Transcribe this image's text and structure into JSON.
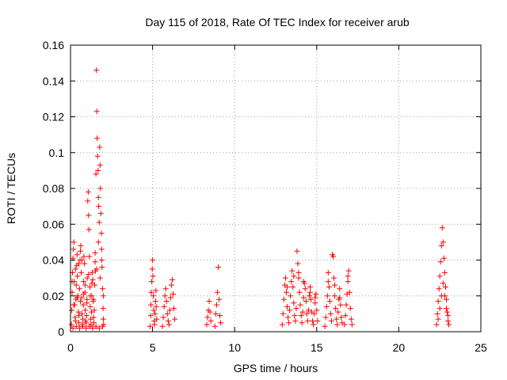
{
  "chart_data": {
    "type": "scatter",
    "title": "Day 115 of 2018, Rate Of TEC Index for receiver arub",
    "xlabel": "GPS time / hours",
    "ylabel": "ROTI / TECUs",
    "xlim": [
      0,
      25
    ],
    "ylim": [
      0,
      0.16
    ],
    "x_ticks": [
      0,
      5,
      10,
      15,
      20,
      25
    ],
    "y_ticks": [
      0,
      0.02,
      0.04,
      0.06,
      0.08,
      0.1,
      0.12,
      0.14,
      0.16
    ],
    "x_tick_labels": [
      "0",
      "5",
      "10",
      "15",
      "20",
      "25"
    ],
    "y_tick_labels": [
      "0",
      "0.02",
      "0.04",
      "0.06",
      "0.08",
      "0.1",
      "0.12",
      "0.14",
      "0.16"
    ],
    "grid": true,
    "marker": "plus",
    "color": "#ff0000",
    "points": [
      [
        0.05,
        0.004
      ],
      [
        0.08,
        0.012
      ],
      [
        0.1,
        0.022
      ],
      [
        0.12,
        0.033
      ],
      [
        0.15,
        0.041
      ],
      [
        0.18,
        0.046
      ],
      [
        0.2,
        0.05
      ],
      [
        0.22,
        0.028
      ],
      [
        0.25,
        0.015
      ],
      [
        0.28,
        0.008
      ],
      [
        0.3,
        0.006
      ],
      [
        0.33,
        0.018
      ],
      [
        0.35,
        0.026
      ],
      [
        0.38,
        0.037
      ],
      [
        0.4,
        0.043
      ],
      [
        0.42,
        0.031
      ],
      [
        0.45,
        0.02
      ],
      [
        0.48,
        0.011
      ],
      [
        0.5,
        0.005
      ],
      [
        0.52,
        0.009
      ],
      [
        0.55,
        0.024
      ],
      [
        0.58,
        0.04
      ],
      [
        0.6,
        0.045
      ],
      [
        0.62,
        0.048
      ],
      [
        0.65,
        0.033
      ],
      [
        0.68,
        0.019
      ],
      [
        0.7,
        0.01
      ],
      [
        0.72,
        0.004
      ],
      [
        0.75,
        0.007
      ],
      [
        0.78,
        0.015
      ],
      [
        0.8,
        0.028
      ],
      [
        0.82,
        0.042
      ],
      [
        0.85,
        0.038
      ],
      [
        0.88,
        0.022
      ],
      [
        0.9,
        0.012
      ],
      [
        0.92,
        0.006
      ],
      [
        0.95,
        0.005
      ],
      [
        0.98,
        0.009
      ],
      [
        1.0,
        0.018
      ],
      [
        1.02,
        0.03
      ],
      [
        1.05,
        0.073
      ],
      [
        1.08,
        0.078
      ],
      [
        1.1,
        0.065
      ],
      [
        1.12,
        0.057
      ],
      [
        1.15,
        0.042
      ],
      [
        1.18,
        0.025
      ],
      [
        1.2,
        0.014
      ],
      [
        1.22,
        0.007
      ],
      [
        1.25,
        0.004
      ],
      [
        1.28,
        0.011
      ],
      [
        1.3,
        0.02
      ],
      [
        1.32,
        0.033
      ],
      [
        1.35,
        0.029
      ],
      [
        1.38,
        0.017
      ],
      [
        1.4,
        0.008
      ],
      [
        1.42,
        0.005
      ],
      [
        1.45,
        0.012
      ],
      [
        1.48,
        0.026
      ],
      [
        1.5,
        0.039
      ],
      [
        1.52,
        0.034
      ],
      [
        1.55,
        0.088
      ],
      [
        1.58,
        0.146
      ],
      [
        1.6,
        0.123
      ],
      [
        1.62,
        0.108
      ],
      [
        1.65,
        0.098
      ],
      [
        1.68,
        0.09
      ],
      [
        1.7,
        0.075
      ],
      [
        1.72,
        0.07
      ],
      [
        1.75,
        0.061
      ],
      [
        1.78,
        0.103
      ],
      [
        1.8,
        0.093
      ],
      [
        1.82,
        0.08
      ],
      [
        1.85,
        0.066
      ],
      [
        1.88,
        0.055
      ],
      [
        1.9,
        0.046
      ],
      [
        1.92,
        0.036
      ],
      [
        1.95,
        0.024
      ],
      [
        1.98,
        0.013
      ],
      [
        2.0,
        0.007
      ],
      [
        2.02,
        0.004
      ],
      [
        0.15,
        0.002
      ],
      [
        0.35,
        0.003
      ],
      [
        0.55,
        0.002
      ],
      [
        0.75,
        0.003
      ],
      [
        0.95,
        0.002
      ],
      [
        1.15,
        0.003
      ],
      [
        1.35,
        0.002
      ],
      [
        1.55,
        0.003
      ],
      [
        1.75,
        0.002
      ],
      [
        1.95,
        0.003
      ],
      [
        4.85,
        0.003
      ],
      [
        4.88,
        0.009
      ],
      [
        4.9,
        0.015
      ],
      [
        4.92,
        0.022
      ],
      [
        4.95,
        0.028
      ],
      [
        4.98,
        0.035
      ],
      [
        5.0,
        0.04
      ],
      [
        5.02,
        0.031
      ],
      [
        5.05,
        0.02
      ],
      [
        5.08,
        0.012
      ],
      [
        5.1,
        0.006
      ],
      [
        5.12,
        0.004
      ],
      [
        5.15,
        0.01
      ],
      [
        5.18,
        0.017
      ],
      [
        5.2,
        0.023
      ],
      [
        5.22,
        0.014
      ],
      [
        5.25,
        0.007
      ],
      [
        5.6,
        0.003
      ],
      [
        5.65,
        0.008
      ],
      [
        5.7,
        0.014
      ],
      [
        5.75,
        0.02
      ],
      [
        5.8,
        0.024
      ],
      [
        5.85,
        0.017
      ],
      [
        5.9,
        0.01
      ],
      [
        5.95,
        0.006
      ],
      [
        6.0,
        0.004
      ],
      [
        6.05,
        0.012
      ],
      [
        6.1,
        0.019
      ],
      [
        6.15,
        0.026
      ],
      [
        6.2,
        0.029
      ],
      [
        6.25,
        0.021
      ],
      [
        6.3,
        0.013
      ],
      [
        6.35,
        0.007
      ],
      [
        8.3,
        0.004
      ],
      [
        8.35,
        0.008
      ],
      [
        8.4,
        0.012
      ],
      [
        8.45,
        0.017
      ],
      [
        8.5,
        0.011
      ],
      [
        8.55,
        0.006
      ],
      [
        8.8,
        0.003
      ],
      [
        8.85,
        0.01
      ],
      [
        8.9,
        0.015
      ],
      [
        8.95,
        0.022
      ],
      [
        9.0,
        0.036
      ],
      [
        9.05,
        0.018
      ],
      [
        9.1,
        0.009
      ],
      [
        9.15,
        0.005
      ],
      [
        12.9,
        0.004
      ],
      [
        12.95,
        0.01
      ],
      [
        13.0,
        0.018
      ],
      [
        13.05,
        0.026
      ],
      [
        13.1,
        0.03
      ],
      [
        13.15,
        0.022
      ],
      [
        13.2,
        0.014
      ],
      [
        13.25,
        0.008
      ],
      [
        13.3,
        0.005
      ],
      [
        13.35,
        0.012
      ],
      [
        13.4,
        0.02
      ],
      [
        13.45,
        0.028
      ],
      [
        13.5,
        0.034
      ],
      [
        13.55,
        0.025
      ],
      [
        13.6,
        0.016
      ],
      [
        13.65,
        0.009
      ],
      [
        13.7,
        0.006
      ],
      [
        13.75,
        0.013
      ],
      [
        13.8,
        0.045
      ],
      [
        13.85,
        0.038
      ],
      [
        13.9,
        0.03
      ],
      [
        13.95,
        0.022
      ],
      [
        14.0,
        0.015
      ],
      [
        14.05,
        0.009
      ],
      [
        14.1,
        0.005
      ],
      [
        14.15,
        0.011
      ],
      [
        14.2,
        0.019
      ],
      [
        14.25,
        0.027
      ],
      [
        14.3,
        0.024
      ],
      [
        14.35,
        0.017
      ],
      [
        14.4,
        0.01
      ],
      [
        14.45,
        0.006
      ],
      [
        14.5,
        0.012
      ],
      [
        14.55,
        0.02
      ],
      [
        14.6,
        0.025
      ],
      [
        14.65,
        0.018
      ],
      [
        14.7,
        0.011
      ],
      [
        14.75,
        0.006
      ],
      [
        14.8,
        0.004
      ],
      [
        14.85,
        0.01
      ],
      [
        14.9,
        0.016
      ],
      [
        14.95,
        0.021
      ],
      [
        15.0,
        0.012
      ],
      [
        15.05,
        0.006
      ],
      [
        15.5,
        0.003
      ],
      [
        15.55,
        0.008
      ],
      [
        15.6,
        0.014
      ],
      [
        15.65,
        0.02
      ],
      [
        15.7,
        0.033
      ],
      [
        15.75,
        0.025
      ],
      [
        15.8,
        0.017
      ],
      [
        15.85,
        0.01
      ],
      [
        15.9,
        0.006
      ],
      [
        15.95,
        0.043
      ],
      [
        16.0,
        0.042
      ],
      [
        16.05,
        0.03
      ],
      [
        16.1,
        0.02
      ],
      [
        16.15,
        0.013
      ],
      [
        16.2,
        0.007
      ],
      [
        16.25,
        0.004
      ],
      [
        16.3,
        0.011
      ],
      [
        16.35,
        0.018
      ],
      [
        16.4,
        0.024
      ],
      [
        16.45,
        0.015
      ],
      [
        16.5,
        0.008
      ],
      [
        16.55,
        0.005
      ],
      [
        16.7,
        0.004
      ],
      [
        16.75,
        0.009
      ],
      [
        16.8,
        0.015
      ],
      [
        16.85,
        0.021
      ],
      [
        16.9,
        0.028
      ],
      [
        16.95,
        0.034
      ],
      [
        17.0,
        0.022
      ],
      [
        17.05,
        0.013
      ],
      [
        17.1,
        0.007
      ],
      [
        17.15,
        0.004
      ],
      [
        22.3,
        0.004
      ],
      [
        22.35,
        0.01
      ],
      [
        22.4,
        0.017
      ],
      [
        22.45,
        0.024
      ],
      [
        22.5,
        0.031
      ],
      [
        22.55,
        0.039
      ],
      [
        22.6,
        0.048
      ],
      [
        22.65,
        0.058
      ],
      [
        22.7,
        0.05
      ],
      [
        22.75,
        0.041
      ],
      [
        22.8,
        0.033
      ],
      [
        22.85,
        0.025
      ],
      [
        22.9,
        0.018
      ],
      [
        22.95,
        0.011
      ],
      [
        23.0,
        0.006
      ],
      [
        23.05,
        0.004
      ],
      [
        22.4,
        0.007
      ],
      [
        22.5,
        0.013
      ],
      [
        22.6,
        0.02
      ],
      [
        22.7,
        0.027
      ],
      [
        22.8,
        0.02
      ],
      [
        22.9,
        0.013
      ],
      [
        23.0,
        0.009
      ],
      [
        0.1,
        0.028
      ],
      [
        0.3,
        0.035
      ],
      [
        0.5,
        0.038
      ],
      [
        0.7,
        0.04
      ],
      [
        0.9,
        0.026
      ],
      [
        1.1,
        0.032
      ],
      [
        1.3,
        0.027
      ],
      [
        1.5,
        0.044
      ],
      [
        1.7,
        0.05
      ],
      [
        1.9,
        0.04
      ],
      [
        0.2,
        0.015
      ],
      [
        0.4,
        0.019
      ],
      [
        0.6,
        0.017
      ],
      [
        0.8,
        0.021
      ],
      [
        1.0,
        0.016
      ],
      [
        1.2,
        0.02
      ],
      [
        1.4,
        0.018
      ],
      [
        1.6,
        0.035
      ],
      [
        1.8,
        0.03
      ],
      [
        2.0,
        0.02
      ],
      [
        13.2,
        0.025
      ],
      [
        13.6,
        0.031
      ],
      [
        13.9,
        0.033
      ],
      [
        14.2,
        0.028
      ],
      [
        14.6,
        0.022
      ],
      [
        14.9,
        0.019
      ],
      [
        15.7,
        0.028
      ],
      [
        16.1,
        0.026
      ],
      [
        16.4,
        0.019
      ],
      [
        16.9,
        0.031
      ]
    ]
  }
}
